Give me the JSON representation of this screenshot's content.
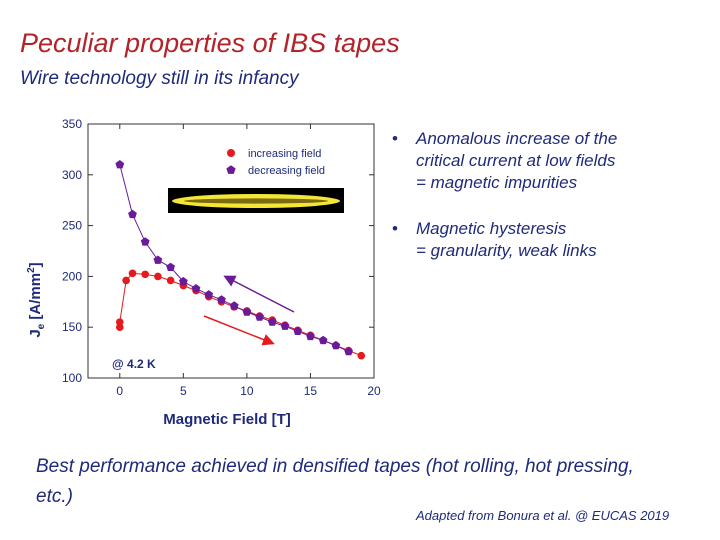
{
  "title": "Peculiar properties of IBS tapes",
  "subtitle": "Wire technology still in its infancy",
  "bullets": [
    {
      "lines": [
        "Anomalous increase of the",
        "critical current at low fields",
        "= magnetic impurities"
      ]
    },
    {
      "lines": [
        "Magnetic hysteresis",
        "= granularity, weak links"
      ]
    }
  ],
  "bottom_text": "Best performance achieved in densified tapes (hot rolling, hot pressing, etc.)",
  "credit": "Adapted from Bonura et al. @ EUCAS 2019",
  "colors": {
    "title": "#b3242a",
    "text": "#1f2a7a",
    "increasing": "#e41a1c",
    "decreasing": "#6a1b9a",
    "tape_outer": "#f4e637",
    "tape_inner": "#7a6a12"
  },
  "chart_data": {
    "type": "scatter",
    "xlabel": "Magnetic Field [T]",
    "ylabel_main": "J",
    "ylabel_sub": "e",
    "ylabel_rest": " [A/mm",
    "ylabel_sup": "2",
    "ylabel_end": "]",
    "xlim": [
      -2.5,
      20
    ],
    "ylim": [
      100,
      350
    ],
    "xticks": [
      0,
      5,
      10,
      15,
      20
    ],
    "yticks": [
      100,
      150,
      200,
      250,
      300,
      350
    ],
    "annotation": "@ 4.2 K",
    "legend_position": "top-right",
    "inset": "tape cross-section photo",
    "series": [
      {
        "name": "increasing field",
        "marker": "circle",
        "color": "#e41a1c",
        "x": [
          0,
          0,
          0.5,
          1,
          2,
          3,
          4,
          5,
          6,
          7,
          8,
          9,
          10,
          11,
          12,
          13,
          14,
          15,
          16,
          17,
          18,
          19
        ],
        "y": [
          150,
          155,
          196,
          203,
          202,
          200,
          196,
          191,
          186,
          180,
          175,
          170,
          166,
          161,
          157,
          152,
          147,
          142,
          137,
          132,
          127,
          122
        ]
      },
      {
        "name": "decreasing field",
        "marker": "pentagon",
        "color": "#6a1b9a",
        "x": [
          0,
          1,
          2,
          3,
          4,
          5,
          6,
          7,
          8,
          9,
          10,
          11,
          12,
          13,
          14,
          15,
          16,
          17,
          18
        ],
        "y": [
          310,
          261,
          234,
          216,
          209,
          195,
          188,
          182,
          177,
          171,
          165,
          160,
          155,
          151,
          146,
          141,
          137,
          132,
          126
        ]
      }
    ]
  }
}
